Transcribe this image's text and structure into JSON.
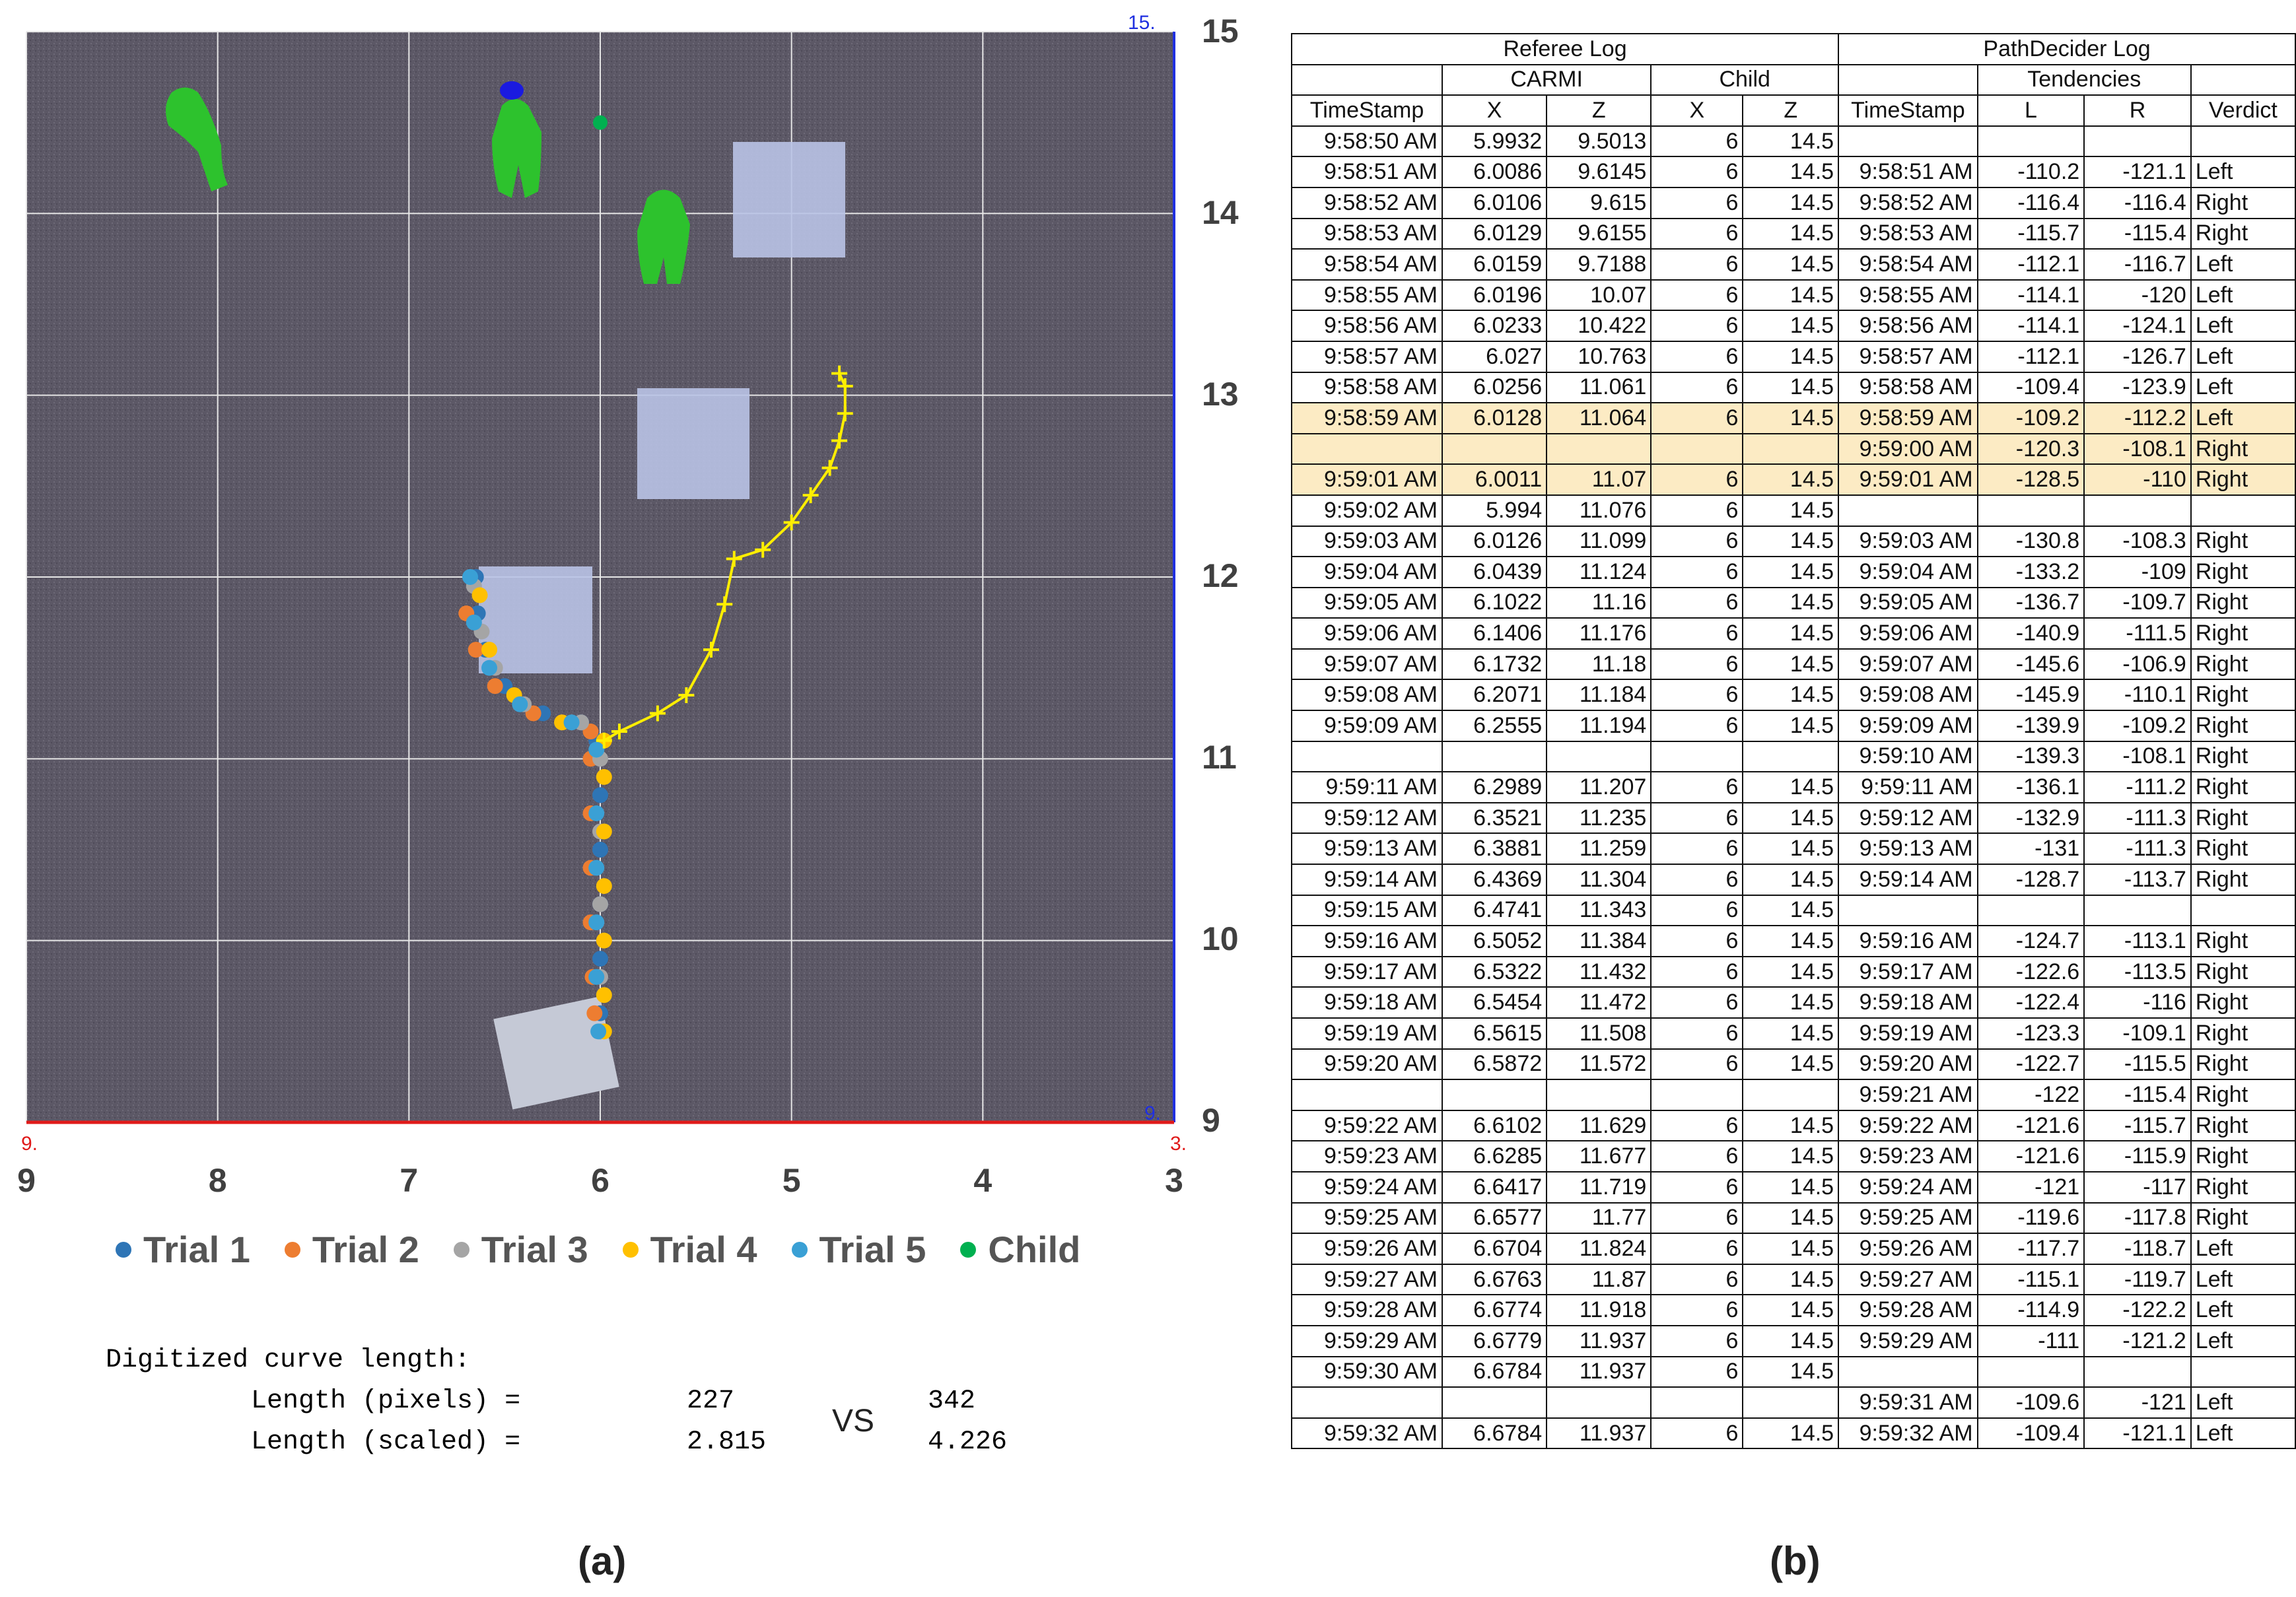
{
  "chart_data": {
    "type": "scatter",
    "title": "",
    "x_ticks": [
      "9",
      "8",
      "7",
      "6",
      "5",
      "4",
      "3"
    ],
    "y_ticks": [
      "15",
      "14",
      "13",
      "12",
      "11",
      "10",
      "9"
    ],
    "xlim": [
      9,
      3
    ],
    "ylim": [
      9,
      15
    ],
    "corner_labels": {
      "top_right": "15.",
      "bottom_right_blue": "9.",
      "bottom_left_red": "9.",
      "bottom_right_red": "3."
    },
    "series": [
      {
        "name": "Trial 1",
        "color": "#2e75b6",
        "points": [
          [
            6.65,
            12.0
          ],
          [
            6.64,
            11.8
          ],
          [
            6.6,
            11.6
          ],
          [
            6.5,
            11.4
          ],
          [
            6.3,
            11.25
          ],
          [
            6.1,
            11.2
          ],
          [
            6.02,
            11.1
          ],
          [
            6.0,
            10.8
          ],
          [
            6.0,
            10.5
          ],
          [
            6.0,
            10.2
          ],
          [
            6.0,
            9.9
          ],
          [
            6.0,
            9.6
          ],
          [
            6.0,
            9.5
          ]
        ]
      },
      {
        "name": "Trial 2",
        "color": "#ed7d31",
        "points": [
          [
            6.7,
            11.8
          ],
          [
            6.65,
            11.6
          ],
          [
            6.55,
            11.4
          ],
          [
            6.35,
            11.25
          ],
          [
            6.05,
            11.15
          ],
          [
            6.05,
            11.0
          ],
          [
            6.05,
            10.7
          ],
          [
            6.05,
            10.4
          ],
          [
            6.05,
            10.1
          ],
          [
            6.04,
            9.8
          ],
          [
            6.03,
            9.6
          ]
        ]
      },
      {
        "name": "Trial 3",
        "color": "#a5a5a5",
        "points": [
          [
            6.66,
            11.95
          ],
          [
            6.62,
            11.7
          ],
          [
            6.55,
            11.5
          ],
          [
            6.4,
            11.3
          ],
          [
            6.1,
            11.2
          ],
          [
            6.0,
            11.0
          ],
          [
            6.0,
            10.6
          ],
          [
            6.0,
            10.2
          ],
          [
            6.0,
            9.8
          ],
          [
            6.0,
            9.5
          ]
        ]
      },
      {
        "name": "Trial 4",
        "color": "#ffc000",
        "points": [
          [
            6.63,
            11.9
          ],
          [
            6.58,
            11.6
          ],
          [
            6.45,
            11.35
          ],
          [
            6.2,
            11.2
          ],
          [
            5.98,
            11.1
          ],
          [
            5.98,
            10.9
          ],
          [
            5.98,
            10.6
          ],
          [
            5.98,
            10.3
          ],
          [
            5.98,
            10.0
          ],
          [
            5.98,
            9.7
          ],
          [
            5.98,
            9.5
          ]
        ]
      },
      {
        "name": "Trial 5",
        "color": "#3aa0d5",
        "points": [
          [
            6.68,
            12.0
          ],
          [
            6.66,
            11.75
          ],
          [
            6.58,
            11.5
          ],
          [
            6.42,
            11.3
          ],
          [
            6.15,
            11.2
          ],
          [
            6.02,
            11.05
          ],
          [
            6.02,
            10.7
          ],
          [
            6.02,
            10.4
          ],
          [
            6.02,
            10.1
          ],
          [
            6.02,
            9.8
          ],
          [
            6.01,
            9.5
          ]
        ]
      },
      {
        "name": "Child",
        "color": "#00b050",
        "points": [
          [
            6.0,
            14.5
          ]
        ]
      }
    ],
    "pathdecider_trace": [
      [
        5.98,
        11.1
      ],
      [
        5.9,
        11.15
      ],
      [
        5.7,
        11.25
      ],
      [
        5.55,
        11.35
      ],
      [
        5.42,
        11.6
      ],
      [
        5.35,
        11.85
      ],
      [
        5.3,
        12.1
      ],
      [
        5.15,
        12.15
      ],
      [
        5.0,
        12.3
      ],
      [
        4.9,
        12.45
      ],
      [
        4.8,
        12.6
      ],
      [
        4.75,
        12.75
      ],
      [
        4.72,
        12.9
      ],
      [
        4.72,
        13.05
      ],
      [
        4.75,
        13.12
      ]
    ]
  },
  "legend": [
    {
      "label": "Trial 1",
      "color": "#2e75b6"
    },
    {
      "label": "Trial 2",
      "color": "#ed7d31"
    },
    {
      "label": "Trial 3",
      "color": "#a5a5a5"
    },
    {
      "label": "Trial 4",
      "color": "#ffc000"
    },
    {
      "label": "Trial 5",
      "color": "#3aa0d5"
    },
    {
      "label": "Child",
      "color": "#00b050"
    }
  ],
  "digitized": {
    "title": "Digitized curve length:",
    "row1_label": "Length (pixels) =",
    "row1_a": "227",
    "row1_b": "342",
    "row2_label": "Length (scaled) =",
    "row2_a": "2.815",
    "row2_b": "4.226",
    "vs": "VS"
  },
  "panel_a": "(a)",
  "panel_b": "(b)",
  "right_ticks": [
    "15",
    "14",
    "13",
    "12",
    "11",
    "10",
    "9"
  ],
  "table": {
    "header1": {
      "referee": "Referee Log",
      "pathdecider": "PathDecider Log"
    },
    "header2": {
      "carmi": "CARMI",
      "child": "Child",
      "tendencies": "Tendencies"
    },
    "header3": [
      "TimeStamp",
      "X",
      "Z",
      "X",
      "Z",
      "TimeStamp",
      "L",
      "R",
      "Verdict"
    ],
    "rows": [
      [
        "9:58:50 AM",
        "5.9932",
        "9.5013",
        "6",
        "14.5",
        "",
        "",
        "",
        ""
      ],
      [
        "9:58:51 AM",
        "6.0086",
        "9.6145",
        "6",
        "14.5",
        "9:58:51 AM",
        "-110.2",
        "-121.1",
        "Left"
      ],
      [
        "9:58:52 AM",
        "6.0106",
        "9.615",
        "6",
        "14.5",
        "9:58:52 AM",
        "-116.4",
        "-116.4",
        "Right"
      ],
      [
        "9:58:53 AM",
        "6.0129",
        "9.6155",
        "6",
        "14.5",
        "9:58:53 AM",
        "-115.7",
        "-115.4",
        "Right"
      ],
      [
        "9:58:54 AM",
        "6.0159",
        "9.7188",
        "6",
        "14.5",
        "9:58:54 AM",
        "-112.1",
        "-116.7",
        "Left"
      ],
      [
        "9:58:55 AM",
        "6.0196",
        "10.07",
        "6",
        "14.5",
        "9:58:55 AM",
        "-114.1",
        "-120",
        "Left"
      ],
      [
        "9:58:56 AM",
        "6.0233",
        "10.422",
        "6",
        "14.5",
        "9:58:56 AM",
        "-114.1",
        "-124.1",
        "Left"
      ],
      [
        "9:58:57 AM",
        "6.027",
        "10.763",
        "6",
        "14.5",
        "9:58:57 AM",
        "-112.1",
        "-126.7",
        "Left"
      ],
      [
        "9:58:58 AM",
        "6.0256",
        "11.061",
        "6",
        "14.5",
        "9:58:58 AM",
        "-109.4",
        "-123.9",
        "Left"
      ],
      [
        "9:58:59 AM",
        "6.0128",
        "11.064",
        "6",
        "14.5",
        "9:58:59 AM",
        "-109.2",
        "-112.2",
        "Left"
      ],
      [
        "",
        "",
        "",
        "",
        "",
        "9:59:00 AM",
        "-120.3",
        "-108.1",
        "Right"
      ],
      [
        "9:59:01 AM",
        "6.0011",
        "11.07",
        "6",
        "14.5",
        "9:59:01 AM",
        "-128.5",
        "-110",
        "Right"
      ],
      [
        "9:59:02 AM",
        "5.994",
        "11.076",
        "6",
        "14.5",
        "",
        "",
        "",
        ""
      ],
      [
        "9:59:03 AM",
        "6.0126",
        "11.099",
        "6",
        "14.5",
        "9:59:03 AM",
        "-130.8",
        "-108.3",
        "Right"
      ],
      [
        "9:59:04 AM",
        "6.0439",
        "11.124",
        "6",
        "14.5",
        "9:59:04 AM",
        "-133.2",
        "-109",
        "Right"
      ],
      [
        "9:59:05 AM",
        "6.1022",
        "11.16",
        "6",
        "14.5",
        "9:59:05 AM",
        "-136.7",
        "-109.7",
        "Right"
      ],
      [
        "9:59:06 AM",
        "6.1406",
        "11.176",
        "6",
        "14.5",
        "9:59:06 AM",
        "-140.9",
        "-111.5",
        "Right"
      ],
      [
        "9:59:07 AM",
        "6.1732",
        "11.18",
        "6",
        "14.5",
        "9:59:07 AM",
        "-145.6",
        "-106.9",
        "Right"
      ],
      [
        "9:59:08 AM",
        "6.2071",
        "11.184",
        "6",
        "14.5",
        "9:59:08 AM",
        "-145.9",
        "-110.1",
        "Right"
      ],
      [
        "9:59:09 AM",
        "6.2555",
        "11.194",
        "6",
        "14.5",
        "9:59:09 AM",
        "-139.9",
        "-109.2",
        "Right"
      ],
      [
        "",
        "",
        "",
        "",
        "",
        "9:59:10 AM",
        "-139.3",
        "-108.1",
        "Right"
      ],
      [
        "9:59:11 AM",
        "6.2989",
        "11.207",
        "6",
        "14.5",
        "9:59:11 AM",
        "-136.1",
        "-111.2",
        "Right"
      ],
      [
        "9:59:12 AM",
        "6.3521",
        "11.235",
        "6",
        "14.5",
        "9:59:12 AM",
        "-132.9",
        "-111.3",
        "Right"
      ],
      [
        "9:59:13 AM",
        "6.3881",
        "11.259",
        "6",
        "14.5",
        "9:59:13 AM",
        "-131",
        "-111.3",
        "Right"
      ],
      [
        "9:59:14 AM",
        "6.4369",
        "11.304",
        "6",
        "14.5",
        "9:59:14 AM",
        "-128.7",
        "-113.7",
        "Right"
      ],
      [
        "9:59:15 AM",
        "6.4741",
        "11.343",
        "6",
        "14.5",
        "",
        "",
        "",
        ""
      ],
      [
        "9:59:16 AM",
        "6.5052",
        "11.384",
        "6",
        "14.5",
        "9:59:16 AM",
        "-124.7",
        "-113.1",
        "Right"
      ],
      [
        "9:59:17 AM",
        "6.5322",
        "11.432",
        "6",
        "14.5",
        "9:59:17 AM",
        "-122.6",
        "-113.5",
        "Right"
      ],
      [
        "9:59:18 AM",
        "6.5454",
        "11.472",
        "6",
        "14.5",
        "9:59:18 AM",
        "-122.4",
        "-116",
        "Right"
      ],
      [
        "9:59:19 AM",
        "6.5615",
        "11.508",
        "6",
        "14.5",
        "9:59:19 AM",
        "-123.3",
        "-109.1",
        "Right"
      ],
      [
        "9:59:20 AM",
        "6.5872",
        "11.572",
        "6",
        "14.5",
        "9:59:20 AM",
        "-122.7",
        "-115.5",
        "Right"
      ],
      [
        "",
        "",
        "",
        "",
        "",
        "9:59:21 AM",
        "-122",
        "-115.4",
        "Right"
      ],
      [
        "9:59:22 AM",
        "6.6102",
        "11.629",
        "6",
        "14.5",
        "9:59:22 AM",
        "-121.6",
        "-115.7",
        "Right"
      ],
      [
        "9:59:23 AM",
        "6.6285",
        "11.677",
        "6",
        "14.5",
        "9:59:23 AM",
        "-121.6",
        "-115.9",
        "Right"
      ],
      [
        "9:59:24 AM",
        "6.6417",
        "11.719",
        "6",
        "14.5",
        "9:59:24 AM",
        "-121",
        "-117",
        "Right"
      ],
      [
        "9:59:25 AM",
        "6.6577",
        "11.77",
        "6",
        "14.5",
        "9:59:25 AM",
        "-119.6",
        "-117.8",
        "Right"
      ],
      [
        "9:59:26 AM",
        "6.6704",
        "11.824",
        "6",
        "14.5",
        "9:59:26 AM",
        "-117.7",
        "-118.7",
        "Left"
      ],
      [
        "9:59:27 AM",
        "6.6763",
        "11.87",
        "6",
        "14.5",
        "9:59:27 AM",
        "-115.1",
        "-119.7",
        "Left"
      ],
      [
        "9:59:28 AM",
        "6.6774",
        "11.918",
        "6",
        "14.5",
        "9:59:28 AM",
        "-114.9",
        "-122.2",
        "Left"
      ],
      [
        "9:59:29 AM",
        "6.6779",
        "11.937",
        "6",
        "14.5",
        "9:59:29 AM",
        "-111",
        "-121.2",
        "Left"
      ],
      [
        "9:59:30 AM",
        "6.6784",
        "11.937",
        "6",
        "14.5",
        "",
        "",
        "",
        ""
      ],
      [
        "",
        "",
        "",
        "",
        "",
        "9:59:31 AM",
        "-109.6",
        "-121",
        "Left"
      ],
      [
        "9:59:32 AM",
        "6.6784",
        "11.937",
        "6",
        "14.5",
        "9:59:32 AM",
        "-109.4",
        "-121.1",
        "Left"
      ]
    ],
    "highlight_rows": [
      9,
      10,
      11
    ],
    "highlight_color": "#fcebc4"
  }
}
